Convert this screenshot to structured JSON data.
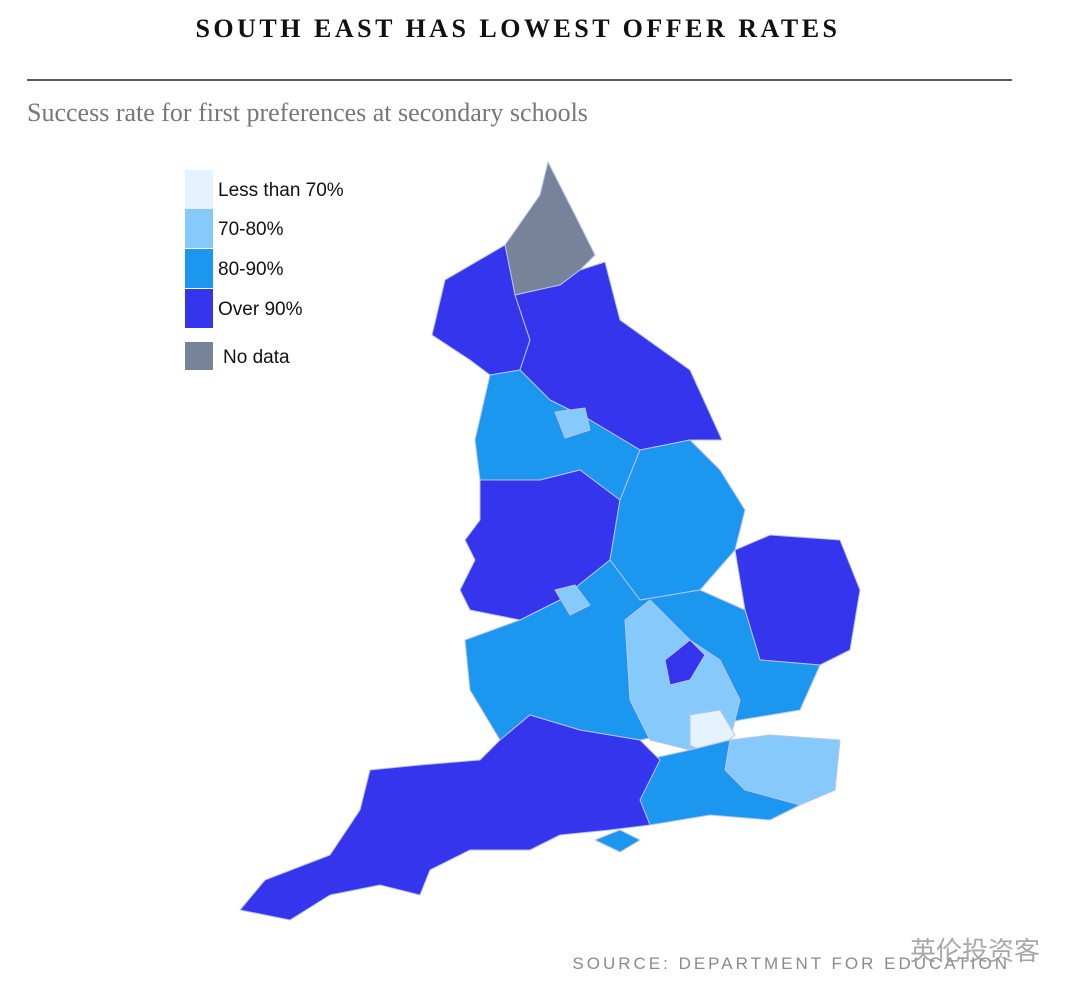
{
  "title": "SOUTH EAST HAS LOWEST OFFER RATES",
  "subtitle": "Success rate for first preferences at secondary schools",
  "legend": {
    "items": [
      {
        "label": "Less than 70%",
        "color": "#e4f3ff"
      },
      {
        "label": "70-80%",
        "color": "#86c9fb"
      },
      {
        "label": "80-90%",
        "color": "#1c97f0"
      },
      {
        "label": "Over 90%",
        "color": "#3535ee"
      },
      {
        "label": "No data",
        "color": "#768399"
      }
    ]
  },
  "source": "SOURCE: DEPARTMENT FOR EDUCATION",
  "watermark": "英伦投资客"
}
